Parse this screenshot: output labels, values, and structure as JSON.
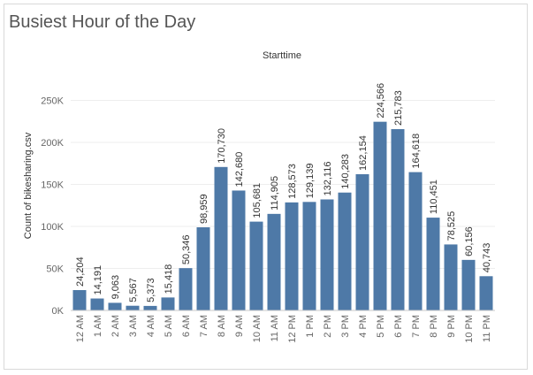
{
  "title": "Busiest Hour of the Day",
  "chart_data": {
    "type": "bar",
    "title": "Busiest Hour of the Day",
    "column_header": "Starttime",
    "ylabel": "Count of bikesharing.csv",
    "xlabel": "",
    "ylim": [
      0,
      255000
    ],
    "yticks": [
      0,
      50000,
      100000,
      150000,
      200000,
      250000
    ],
    "ytick_labels": [
      "0K",
      "50K",
      "100K",
      "150K",
      "200K",
      "250K"
    ],
    "categories": [
      "12 AM",
      "1 AM",
      "2 AM",
      "3 AM",
      "4 AM",
      "5 AM",
      "6 AM",
      "7 AM",
      "8 AM",
      "9 AM",
      "10 AM",
      "11 AM",
      "12 PM",
      "1 PM",
      "2 PM",
      "3 PM",
      "4 PM",
      "5 PM",
      "6 PM",
      "7 PM",
      "8 PM",
      "9 PM",
      "10 PM",
      "11 PM"
    ],
    "values": [
      24204,
      14191,
      9063,
      5567,
      5373,
      15418,
      50346,
      98959,
      170730,
      142680,
      105681,
      114905,
      128573,
      129139,
      132116,
      140283,
      162154,
      224566,
      215783,
      164618,
      110451,
      78525,
      60156,
      40743
    ],
    "value_labels": [
      "24,204",
      "14,191",
      "9,063",
      "5,567",
      "5,373",
      "15,418",
      "50,346",
      "98,959",
      "170,730",
      "142,680",
      "105,681",
      "114,905",
      "128,573",
      "129,139",
      "132,116",
      "140,283",
      "162,154",
      "224,566",
      "215,783",
      "164,618",
      "110,451",
      "78,525",
      "60,156",
      "40,743"
    ],
    "bar_color": "#4e79a7",
    "grid": true,
    "legend": "none"
  }
}
